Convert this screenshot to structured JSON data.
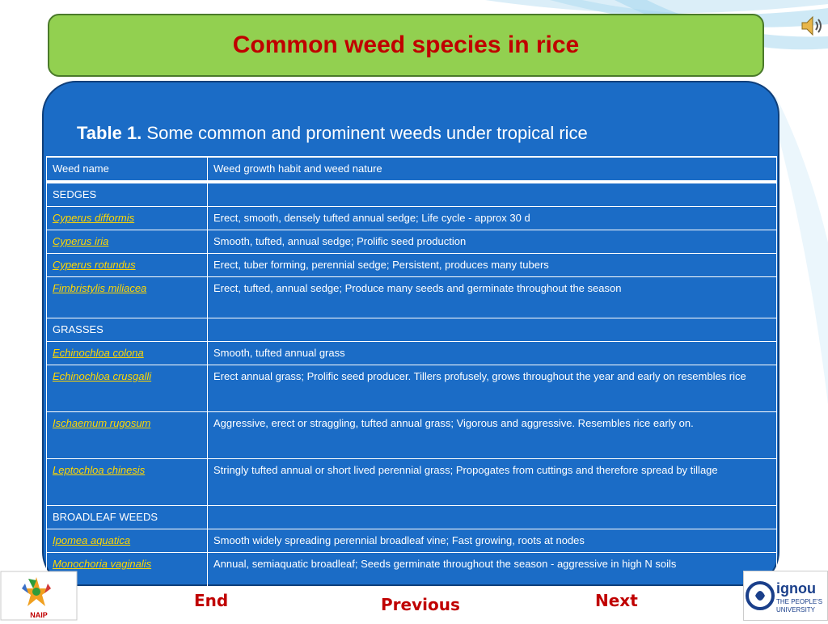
{
  "slide": {
    "title": "Common weed species in rice"
  },
  "caption": {
    "label": "Table 1.",
    "text": " Some common and prominent weeds under tropical rice"
  },
  "table": {
    "headers": [
      "Weed name",
      "Weed growth habit and weed nature"
    ],
    "rows": [
      {
        "name": "SEDGES",
        "desc": "",
        "type": "section"
      },
      {
        "name": "Cyperus difformis",
        "desc": "Erect, smooth, densely tufted annual sedge; Life cycle - approx 30 d",
        "type": "species"
      },
      {
        "name": "Cyperus iria",
        "desc": "Smooth, tufted, annual sedge; Prolific seed production",
        "type": "species"
      },
      {
        "name": "Cyperus rotundus",
        "desc": "Erect, tuber forming, perennial sedge; Persistent, produces many tubers",
        "type": "species"
      },
      {
        "name": "Fimbristylis miliacea",
        "desc": "Erect, tufted, annual sedge; Produce many seeds and germinate throughout the season",
        "type": "species"
      },
      {
        "name": "GRASSES",
        "desc": "",
        "type": "section"
      },
      {
        "name": "Echinochloa colona",
        "desc": "Smooth, tufted annual grass",
        "type": "species"
      },
      {
        "name": "Echinochloa crusgalli",
        "desc": "Erect annual grass; Prolific seed producer. Tillers profusely, grows throughout the year and early on resembles rice",
        "type": "species"
      },
      {
        "name": "Ischaemum rugosum",
        "desc": "Aggressive, erect or straggling, tufted annual grass; Vigorous and aggressive. Resembles rice early on.",
        "type": "species"
      },
      {
        "name": "Leptochloa chinesis",
        "desc": "Stringly tufted annual or short lived perennial grass; Propogates from cuttings and therefore spread by tillage",
        "type": "species"
      },
      {
        "name": "BROADLEAF WEEDS",
        "desc": "",
        "type": "section"
      },
      {
        "name": "Ipomea aquatica",
        "desc": "Smooth widely spreading perennial broadleaf vine; Fast growing, roots at nodes",
        "type": "species"
      },
      {
        "name": "Monochoria vaginalis",
        "desc": "Annual, semiaquatic broadleaf; Seeds germinate throughout the season - aggressive in high N soils",
        "type": "species"
      }
    ]
  },
  "nav": {
    "end_label": "End",
    "previous_label": "Previous",
    "next_label": "Next"
  },
  "logos": {
    "left_text": "NAIP",
    "right_brand": "ignou",
    "right_line1": "THE PEOPLE'S",
    "right_line2": "UNIVERSITY"
  },
  "colors": {
    "title_bg": "#92d050",
    "title_text": "#c00000",
    "panel_bg": "#1b6cc6",
    "species_link": "#ffd700"
  },
  "icons": {
    "audio": "speaker-icon"
  }
}
